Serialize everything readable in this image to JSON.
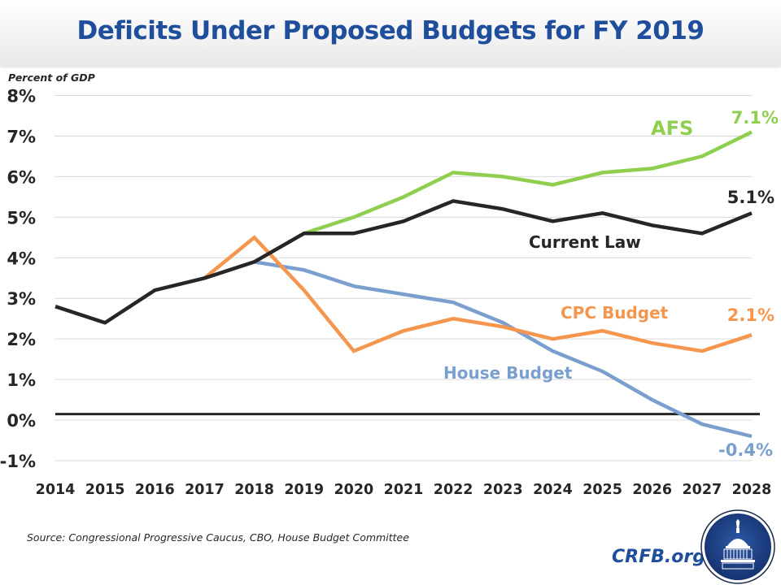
{
  "header": {
    "title": "Deficits Under Proposed Budgets for FY 2019"
  },
  "footer": {
    "source": "Source: Congressional Progressive Caucus, CBO, House Budget Committee",
    "brand": "CRFB.org",
    "logo_icon": "capitol-dome-icon"
  },
  "colors": {
    "title": "#1f4e9c",
    "current_law": "#262626",
    "afs": "#8fce4e",
    "cpc": "#f5964f",
    "house": "#7a9fcf",
    "grid": "#d9d9d9"
  },
  "chart_data": {
    "type": "line",
    "title": "Deficits Under Proposed Budgets for FY 2019",
    "xlabel": "",
    "ylabel": "Percent of GDP",
    "x": [
      2014,
      2015,
      2016,
      2017,
      2018,
      2019,
      2020,
      2021,
      2022,
      2023,
      2024,
      2025,
      2026,
      2027,
      2028
    ],
    "x_tick_labels": [
      "2014",
      "2015",
      "2016",
      "2017",
      "2018",
      "2019",
      "2020",
      "2021",
      "2022",
      "2023",
      "2024",
      "2025",
      "2026",
      "2027",
      "2028"
    ],
    "ylim": [
      -1,
      8
    ],
    "y_ticks": [
      8,
      7,
      6,
      5,
      4,
      3,
      2,
      1,
      0,
      -1
    ],
    "y_tick_labels": [
      "8%",
      "7%",
      "6%",
      "5%",
      "4%",
      "3%",
      "2%",
      "1%",
      "0%",
      "-1%"
    ],
    "grid": true,
    "reference_line": {
      "y": 0.15,
      "color": "#262626"
    },
    "series": [
      {
        "name": "Current Law",
        "color": "#262626",
        "values": [
          2.8,
          2.4,
          3.2,
          3.5,
          3.9,
          4.6,
          4.6,
          4.9,
          5.4,
          5.2,
          4.9,
          5.1,
          4.8,
          4.6,
          5.1
        ],
        "end_label": "5.1%"
      },
      {
        "name": "AFS",
        "color": "#8fce4e",
        "values": [
          null,
          null,
          null,
          null,
          null,
          4.6,
          5.0,
          5.5,
          6.1,
          6.0,
          5.8,
          6.1,
          6.2,
          6.5,
          7.1
        ],
        "end_label": "7.1%"
      },
      {
        "name": "CPC Budget",
        "color": "#f5964f",
        "values": [
          null,
          null,
          null,
          3.5,
          4.5,
          3.2,
          1.7,
          2.2,
          2.5,
          2.3,
          2.0,
          2.2,
          1.9,
          1.7,
          2.1
        ],
        "end_label": "2.1%"
      },
      {
        "name": "House Budget",
        "color": "#7a9fcf",
        "values": [
          null,
          null,
          null,
          null,
          3.9,
          3.7,
          3.3,
          3.1,
          2.9,
          2.4,
          1.7,
          1.2,
          0.5,
          -0.1,
          -0.4
        ],
        "end_label": "-0.4%"
      }
    ],
    "annotations": [
      {
        "text": "AFS",
        "series": "AFS"
      },
      {
        "text": "Current Law",
        "series": "Current Law"
      },
      {
        "text": "CPC Budget",
        "series": "CPC Budget"
      },
      {
        "text": "House Budget",
        "series": "House Budget"
      }
    ],
    "legend": "inline-labels"
  }
}
